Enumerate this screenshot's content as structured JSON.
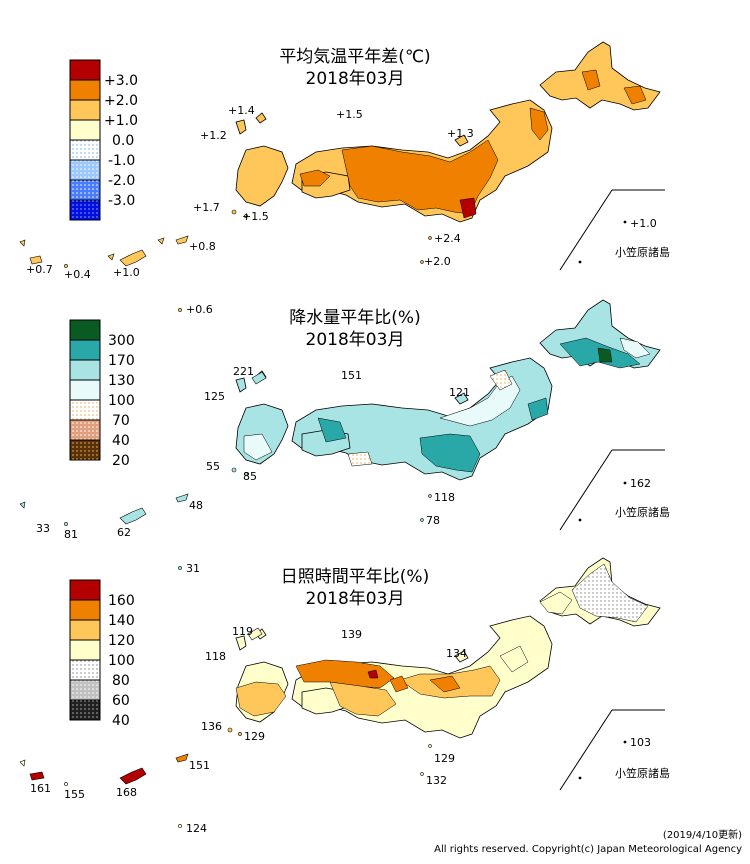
{
  "colors": {
    "temp": {
      "p3": "#b40000",
      "p2": "#f08000",
      "p1": "#ffc65a",
      "n0": "#ffffcc",
      "m0": "#dff0ff",
      "m1": "#9cc8ff",
      "m2": "#5a8cff",
      "m3": "#0010e0"
    },
    "precip": {
      "c300": "#0a5a23",
      "c170": "#2aa8a8",
      "c130": "#a8e4e4",
      "c100": "#e8fafa",
      "c70": "#ffe8cc",
      "c40": "#d89a70",
      "c20": "#7a4410"
    },
    "sun": {
      "c160": "#b40000",
      "c140": "#f08000",
      "c120": "#ffc65a",
      "c100": "#ffffcc",
      "c80": "#f0f0f0",
      "c60": "#b8b8b8",
      "c40": "#404040"
    }
  },
  "panels": [
    {
      "id": "temperature",
      "title": "平均気温平年差(℃)",
      "subtitle": "2018年03月",
      "legend": [
        "+3.0",
        "+2.0",
        "+1.0",
        "0.0",
        "-1.0",
        "-2.0",
        "-3.0"
      ],
      "stations": [
        {
          "key": "s1",
          "label": "+1.4"
        },
        {
          "key": "s2",
          "label": "+1.5"
        },
        {
          "key": "s3",
          "label": "+1.2"
        },
        {
          "key": "s4",
          "label": "+1.3"
        },
        {
          "key": "s5",
          "label": "+1.7"
        },
        {
          "key": "s6",
          "label": "+1.5"
        },
        {
          "key": "s7",
          "label": "+2.4"
        },
        {
          "key": "s8",
          "label": "+2.0"
        },
        {
          "key": "s9",
          "label": "+1.0"
        },
        {
          "key": "s10",
          "label": "+0.8"
        },
        {
          "key": "s11",
          "label": "+0.7"
        },
        {
          "key": "s12",
          "label": "+0.4"
        },
        {
          "key": "s13",
          "label": "+1.0"
        },
        {
          "key": "s14",
          "label": "+0.6"
        }
      ],
      "inset_label": "小笠原諸島"
    },
    {
      "id": "precipitation",
      "title": "降水量平年比(%)",
      "subtitle": "2018年03月",
      "legend": [
        "300",
        "170",
        "130",
        "100",
        "70",
        "40",
        "20"
      ],
      "stations": [
        {
          "key": "s1",
          "label": "221"
        },
        {
          "key": "s2",
          "label": "151"
        },
        {
          "key": "s3",
          "label": "125"
        },
        {
          "key": "s4",
          "label": "121"
        },
        {
          "key": "s5",
          "label": "55"
        },
        {
          "key": "s6",
          "label": "85"
        },
        {
          "key": "s7",
          "label": "118"
        },
        {
          "key": "s8",
          "label": "78"
        },
        {
          "key": "s9",
          "label": "162"
        },
        {
          "key": "s10",
          "label": "48"
        },
        {
          "key": "s11",
          "label": "33"
        },
        {
          "key": "s12",
          "label": "81"
        },
        {
          "key": "s13",
          "label": "62"
        },
        {
          "key": "s14",
          "label": "31"
        }
      ],
      "inset_label": "小笠原諸島"
    },
    {
      "id": "sunshine",
      "title": "日照時間平年比(%)",
      "subtitle": "2018年03月",
      "legend": [
        "160",
        "140",
        "120",
        "100",
        "80",
        "60",
        "40"
      ],
      "stations": [
        {
          "key": "s1",
          "label": "119"
        },
        {
          "key": "s2",
          "label": "139"
        },
        {
          "key": "s3",
          "label": "118"
        },
        {
          "key": "s4",
          "label": "134"
        },
        {
          "key": "s5",
          "label": "136"
        },
        {
          "key": "s6",
          "label": "129"
        },
        {
          "key": "s7",
          "label": "129"
        },
        {
          "key": "s8",
          "label": "132"
        },
        {
          "key": "s9",
          "label": "103"
        },
        {
          "key": "s10",
          "label": "151"
        },
        {
          "key": "s11",
          "label": "161"
        },
        {
          "key": "s12",
          "label": "155"
        },
        {
          "key": "s13",
          "label": "168"
        },
        {
          "key": "s14",
          "label": "124"
        }
      ],
      "inset_label": "小笠原諸島"
    }
  ],
  "footer": {
    "updated": "(2019/4/10更新)",
    "copyright": "All rights reserved. Copyright(c) Japan Meteorological Agency"
  }
}
